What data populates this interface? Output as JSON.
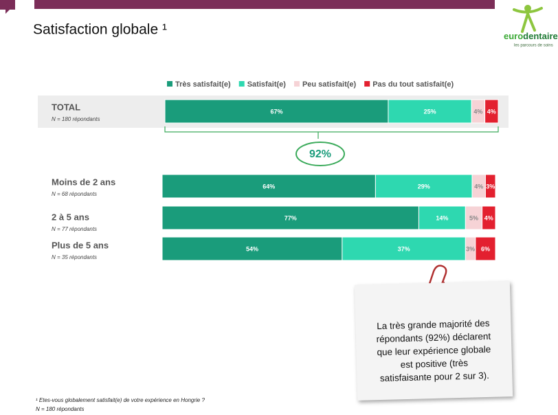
{
  "title": "Satisfaction globale ¹",
  "logo": {
    "name_a": "euro",
    "name_b": "dentaire",
    "tagline": "les parcours de soins"
  },
  "chart_data": {
    "type": "bar",
    "orientation": "horizontal",
    "stacked": true,
    "categories": [
      "TOTAL",
      "Moins de 2 ans",
      "2 à 5 ans",
      "Plus de 5 ans"
    ],
    "category_notes": [
      "N = 180 répondants",
      "N = 68 répondants",
      "N = 77 répondants",
      "N = 35 répondants"
    ],
    "series": [
      {
        "name": "Très satisfait(e)",
        "color": "#1a9c7b",
        "values": [
          67,
          64,
          77,
          54
        ],
        "value_labels": [
          "67%",
          "64%",
          "77%",
          "54%"
        ]
      },
      {
        "name": "Satisfait(e)",
        "color": "#2ed8b0",
        "values": [
          25,
          29,
          14,
          37
        ],
        "value_labels": [
          "25%",
          "29%",
          "14%",
          "37%"
        ]
      },
      {
        "name": "Peu satisfait(e)",
        "color": "#f6d3d6",
        "values": [
          4,
          4,
          5,
          3
        ],
        "value_labels": [
          "4%",
          "4%",
          "5%",
          "3%"
        ]
      },
      {
        "name": "Pas du tout satisfait(e)",
        "color": "#e3202f",
        "values": [
          4,
          3,
          4,
          6
        ],
        "value_labels": [
          "4%",
          "3%",
          "4%",
          "6%"
        ]
      }
    ],
    "annotation": "92%"
  },
  "note": "La très grande majorité des répondants (92%) déclarent que leur expérience globale est positive (très satisfaisante pour 2 sur 3).",
  "footnote": [
    "¹ Etes-vous globalement satisfait(e) de votre expérience en Hongrie ?",
    "N = 180 répondants"
  ]
}
